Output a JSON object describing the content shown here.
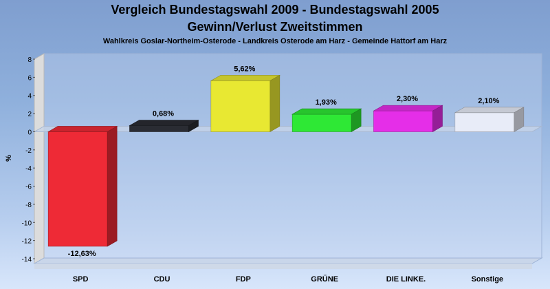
{
  "title_line1": "Vergleich Bundestagswahl 2009 - Bundestagswahl 2005",
  "title_line2": "Gewinn/Verlust Zweitstimmen",
  "subtitle": "Wahlkreis Goslar-Northeim-Osterode - Landkreis Osterode am Harz - Gemeinde Hattorf am Harz",
  "chart_data": {
    "type": "bar",
    "title": "Vergleich Bundestagswahl 2009 - Bundestagswahl 2005 Gewinn/Verlust Zweitstimmen",
    "subtitle": "Wahlkreis Goslar-Northeim-Osterode - Landkreis Osterode am Harz - Gemeinde Hattorf am Harz",
    "xlabel": "",
    "ylabel": "%",
    "ylim": [
      -14,
      8
    ],
    "yticks": [
      8,
      6,
      4,
      2,
      0,
      -2,
      -4,
      -6,
      -8,
      -10,
      -12,
      -14
    ],
    "categories": [
      "SPD",
      "CDU",
      "FDP",
      "GRÜNE",
      "DIE LINKE.",
      "Sonstige"
    ],
    "values": [
      -12.63,
      0.68,
      5.62,
      1.93,
      2.3,
      2.1
    ],
    "value_labels": [
      "-12,63%",
      "0,68%",
      "5,62%",
      "1,93%",
      "2,30%",
      "2,10%"
    ],
    "colors": [
      "#ee2a36",
      "#2a2c33",
      "#e8e832",
      "#2ee835",
      "#e52ee8",
      "#e8ecf8"
    ],
    "grid": false,
    "legend": "none"
  }
}
